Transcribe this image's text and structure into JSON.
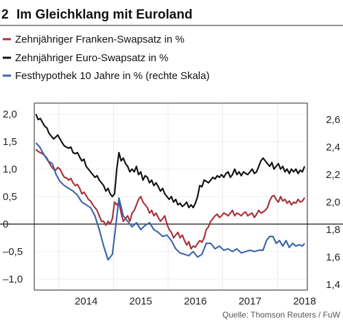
{
  "header": {
    "figure_number": "2",
    "title": "Im Gleichklang mit Euroland"
  },
  "source": "Quelle: Thomson Reuters / FuW",
  "colors": {
    "chf_swap": "#a83238",
    "eur_swap": "#111111",
    "mortgage": "#3a66ad",
    "frame": "#222222",
    "grid": "#9a9a9a"
  },
  "chart_data": {
    "type": "line",
    "x_ticks": [
      "2014",
      "2015",
      "2016",
      "2017",
      "2018"
    ],
    "y_left": {
      "ticks": [
        "2,0",
        "1,5",
        "1,0",
        "0,5",
        "0",
        "–0,5",
        "–1,0"
      ],
      "range": [
        -1.2,
        2.2
      ]
    },
    "y_right": {
      "ticks": [
        "2,6",
        "2,4",
        "2,2",
        "2,0",
        "1,8",
        "1,6",
        "1,4"
      ],
      "range": [
        1.36,
        2.72
      ]
    },
    "x_range": [
      2013.55,
      2018.55
    ],
    "series": [
      {
        "name": "Zehnjähriger Franken-Swapsatz in %",
        "axis": "left",
        "color_key": "chf_swap",
        "x": [
          2013.58,
          2013.62,
          2013.66,
          2013.7,
          2013.74,
          2013.78,
          2013.82,
          2013.86,
          2013.9,
          2013.94,
          2013.98,
          2014.02,
          2014.06,
          2014.1,
          2014.14,
          2014.18,
          2014.22,
          2014.26,
          2014.3,
          2014.34,
          2014.38,
          2014.42,
          2014.46,
          2014.5,
          2014.54,
          2014.58,
          2014.62,
          2014.66,
          2014.7,
          2014.74,
          2014.78,
          2014.82,
          2014.86,
          2014.9,
          2014.94,
          2014.98,
          2015.02,
          2015.06,
          2015.1,
          2015.14,
          2015.18,
          2015.22,
          2015.26,
          2015.3,
          2015.34,
          2015.38,
          2015.42,
          2015.46,
          2015.5,
          2015.54,
          2015.58,
          2015.62,
          2015.66,
          2015.7,
          2015.74,
          2015.78,
          2015.82,
          2015.86,
          2015.9,
          2015.94,
          2015.98,
          2016.02,
          2016.06,
          2016.1,
          2016.14,
          2016.18,
          2016.22,
          2016.26,
          2016.3,
          2016.34,
          2016.38,
          2016.42,
          2016.46,
          2016.5,
          2016.54,
          2016.58,
          2016.62,
          2016.66,
          2016.7,
          2016.74,
          2016.78,
          2016.82,
          2016.86,
          2016.9,
          2016.94,
          2016.98,
          2017.02,
          2017.06,
          2017.1,
          2017.14,
          2017.18,
          2017.22,
          2017.26,
          2017.3,
          2017.34,
          2017.38,
          2017.42,
          2017.46,
          2017.5,
          2017.54,
          2017.58,
          2017.62,
          2017.66,
          2017.7,
          2017.74,
          2017.78,
          2017.82,
          2017.86,
          2017.9,
          2017.94,
          2017.98,
          2018.02,
          2018.06,
          2018.1,
          2018.14,
          2018.18,
          2018.22,
          2018.26,
          2018.3,
          2018.34,
          2018.38,
          2018.42,
          2018.46,
          2018.5
        ],
        "values": [
          1.36,
          1.32,
          1.3,
          1.28,
          1.25,
          1.2,
          1.12,
          1.05,
          1.0,
          0.98,
          1.03,
          1.0,
          0.92,
          0.85,
          0.84,
          0.8,
          0.83,
          0.75,
          0.7,
          0.72,
          0.65,
          0.55,
          0.58,
          0.52,
          0.45,
          0.42,
          0.35,
          0.3,
          0.25,
          0.15,
          0.05,
          0.05,
          -0.02,
          0.05,
          0.0,
          0.1,
          0.4,
          0.35,
          0.4,
          0.2,
          0.05,
          0.1,
          0.15,
          0.05,
          0.2,
          0.25,
          0.35,
          0.45,
          0.5,
          0.4,
          0.35,
          0.3,
          0.2,
          0.25,
          0.15,
          0.2,
          0.12,
          0.05,
          0.1,
          0.15,
          0.0,
          -0.1,
          -0.15,
          -0.25,
          -0.2,
          -0.15,
          -0.25,
          -0.2,
          -0.3,
          -0.38,
          -0.32,
          -0.45,
          -0.4,
          -0.42,
          -0.35,
          -0.3,
          -0.33,
          -0.25,
          -0.1,
          -0.05,
          0.05,
          0.1,
          0.15,
          0.18,
          0.12,
          0.15,
          0.2,
          0.18,
          0.15,
          0.2,
          0.25,
          0.15,
          0.2,
          0.18,
          0.15,
          0.2,
          0.22,
          0.15,
          0.18,
          0.2,
          0.12,
          0.18,
          0.25,
          0.2,
          0.22,
          0.25,
          0.3,
          0.42,
          0.5,
          0.52,
          0.45,
          0.4,
          0.5,
          0.42,
          0.45,
          0.38,
          0.42,
          0.35,
          0.4,
          0.38,
          0.45,
          0.4,
          0.42,
          0.48
        ]
      },
      {
        "name": "Zehnjähriger Euro-Swapsatz in %",
        "axis": "left",
        "color_key": "eur_swap",
        "x": [
          2013.58,
          2013.62,
          2013.66,
          2013.7,
          2013.74,
          2013.78,
          2013.82,
          2013.86,
          2013.9,
          2013.94,
          2013.98,
          2014.02,
          2014.06,
          2014.1,
          2014.14,
          2014.18,
          2014.22,
          2014.26,
          2014.3,
          2014.34,
          2014.38,
          2014.42,
          2014.46,
          2014.5,
          2014.54,
          2014.58,
          2014.62,
          2014.66,
          2014.7,
          2014.74,
          2014.78,
          2014.82,
          2014.86,
          2014.9,
          2014.94,
          2014.98,
          2015.02,
          2015.06,
          2015.1,
          2015.14,
          2015.18,
          2015.22,
          2015.26,
          2015.3,
          2015.34,
          2015.38,
          2015.42,
          2015.46,
          2015.5,
          2015.54,
          2015.58,
          2015.62,
          2015.66,
          2015.7,
          2015.74,
          2015.78,
          2015.82,
          2015.86,
          2015.9,
          2015.94,
          2015.98,
          2016.02,
          2016.06,
          2016.1,
          2016.14,
          2016.18,
          2016.22,
          2016.26,
          2016.3,
          2016.34,
          2016.38,
          2016.42,
          2016.46,
          2016.5,
          2016.54,
          2016.58,
          2016.62,
          2016.66,
          2016.7,
          2016.74,
          2016.78,
          2016.82,
          2016.86,
          2016.9,
          2016.94,
          2016.98,
          2017.02,
          2017.06,
          2017.1,
          2017.14,
          2017.18,
          2017.22,
          2017.26,
          2017.3,
          2017.34,
          2017.38,
          2017.42,
          2017.46,
          2017.5,
          2017.54,
          2017.58,
          2017.62,
          2017.66,
          2017.7,
          2017.74,
          2017.78,
          2017.82,
          2017.86,
          2017.9,
          2017.94,
          2017.98,
          2018.02,
          2018.06,
          2018.1,
          2018.14,
          2018.18,
          2018.22,
          2018.26,
          2018.3,
          2018.34,
          2018.38,
          2018.42,
          2018.46,
          2018.5
        ],
        "values": [
          2.0,
          1.9,
          1.92,
          1.85,
          1.78,
          1.75,
          1.65,
          1.6,
          1.55,
          1.58,
          1.62,
          1.55,
          1.48,
          1.42,
          1.4,
          1.38,
          1.4,
          1.3,
          1.28,
          1.3,
          1.22,
          1.15,
          1.18,
          1.05,
          1.0,
          0.95,
          0.9,
          0.85,
          0.88,
          0.8,
          0.75,
          0.7,
          0.6,
          0.65,
          0.55,
          0.5,
          0.55,
          1.0,
          1.3,
          1.15,
          1.2,
          1.1,
          1.05,
          0.95,
          1.0,
          0.95,
          1.05,
          0.9,
          0.95,
          0.8,
          0.88,
          0.85,
          0.75,
          0.8,
          0.7,
          0.75,
          0.68,
          0.6,
          0.65,
          0.55,
          0.5,
          0.45,
          0.5,
          0.4,
          0.45,
          0.35,
          0.38,
          0.32,
          0.35,
          0.4,
          0.3,
          0.35,
          0.3,
          0.38,
          0.5,
          0.7,
          0.68,
          0.8,
          0.78,
          0.75,
          0.8,
          0.85,
          0.82,
          0.88,
          0.85,
          0.9,
          0.85,
          0.92,
          0.95,
          0.85,
          0.9,
          1.0,
          0.9,
          0.95,
          0.88,
          0.95,
          0.92,
          0.9,
          0.95,
          1.0,
          0.92,
          0.95,
          1.05,
          1.15,
          1.2,
          1.15,
          1.1,
          1.05,
          1.12,
          1.0,
          1.05,
          1.1,
          1.0,
          1.05,
          0.95,
          1.0,
          0.92,
          1.0,
          0.95,
          1.0,
          0.92,
          0.98,
          0.95,
          1.05
        ]
      },
      {
        "name": "Festhypothek 10 Jahre in % (rechte Skala)",
        "axis": "right",
        "color_key": "mortgage",
        "x": [
          2013.58,
          2013.65,
          2013.72,
          2013.8,
          2013.88,
          2013.95,
          2014.02,
          2014.1,
          2014.18,
          2014.26,
          2014.34,
          2014.42,
          2014.5,
          2014.58,
          2014.66,
          2014.74,
          2014.82,
          2014.9,
          2014.98,
          2015.04,
          2015.1,
          2015.18,
          2015.26,
          2015.34,
          2015.42,
          2015.5,
          2015.58,
          2015.66,
          2015.74,
          2015.82,
          2015.9,
          2015.98,
          2016.06,
          2016.14,
          2016.22,
          2016.3,
          2016.38,
          2016.46,
          2016.54,
          2016.62,
          2016.7,
          2016.78,
          2016.86,
          2016.94,
          2017.02,
          2017.1,
          2017.18,
          2017.26,
          2017.34,
          2017.42,
          2017.5,
          2017.58,
          2017.66,
          2017.74,
          2017.8,
          2017.86,
          2017.92,
          2017.98,
          2018.04,
          2018.1,
          2018.16,
          2018.22,
          2018.28,
          2018.34,
          2018.4,
          2018.46,
          2018.5
        ],
        "values": [
          2.43,
          2.4,
          2.35,
          2.3,
          2.28,
          2.2,
          2.15,
          2.12,
          2.1,
          2.08,
          2.05,
          2.0,
          1.98,
          1.96,
          1.9,
          1.8,
          1.68,
          1.58,
          1.62,
          1.82,
          2.03,
          1.9,
          1.86,
          1.82,
          1.85,
          1.8,
          1.83,
          1.85,
          1.8,
          1.78,
          1.75,
          1.76,
          1.72,
          1.66,
          1.63,
          1.62,
          1.61,
          1.64,
          1.6,
          1.62,
          1.7,
          1.7,
          1.66,
          1.68,
          1.65,
          1.66,
          1.64,
          1.66,
          1.63,
          1.64,
          1.65,
          1.64,
          1.65,
          1.65,
          1.72,
          1.75,
          1.75,
          1.7,
          1.72,
          1.68,
          1.72,
          1.67,
          1.7,
          1.68,
          1.69,
          1.68,
          1.7
        ]
      }
    ],
    "zero_line": 0,
    "grid": true,
    "legend_position": "top-left"
  }
}
